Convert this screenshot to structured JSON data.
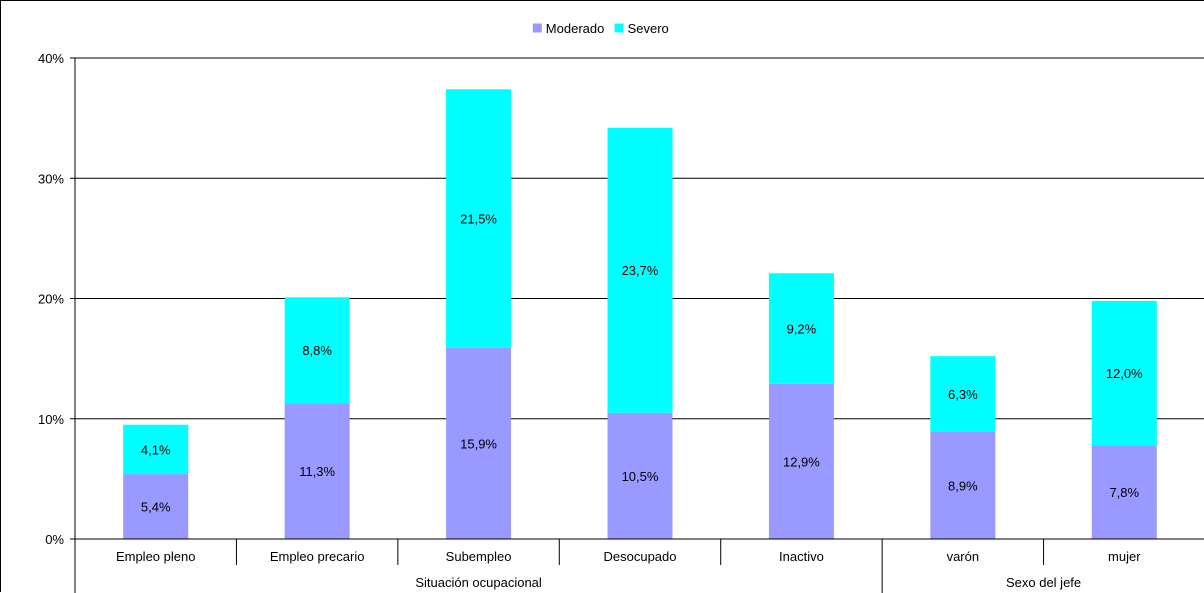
{
  "chart_data": {
    "type": "bar",
    "stacked": true,
    "categories": [
      "Empleo pleno",
      "Empleo precario",
      "Subempleo",
      "Desocupado",
      "Inactivo",
      "varón",
      "mujer"
    ],
    "groups": [
      {
        "label": "Situación ocupacional",
        "categories": [
          "Empleo pleno",
          "Empleo precario",
          "Subempleo",
          "Desocupado",
          "Inactivo"
        ]
      },
      {
        "label": "Sexo del jefe",
        "categories": [
          "varón",
          "mujer"
        ]
      }
    ],
    "series": [
      {
        "name": "Moderado",
        "color": "#9999ff",
        "values": [
          5.4,
          11.3,
          15.9,
          10.5,
          12.9,
          8.9,
          7.8
        ],
        "labels": [
          "5,4%",
          "11,3%",
          "15,9%",
          "10,5%",
          "12,9%",
          "8,9%",
          "7,8%"
        ]
      },
      {
        "name": "Severo",
        "color": "#00ffff",
        "values": [
          4.1,
          8.8,
          21.5,
          23.7,
          9.2,
          6.3,
          12.0
        ],
        "labels": [
          "4,1%",
          "8,8%",
          "21,5%",
          "23,7%",
          "9,2%",
          "6,3%",
          "12,0%"
        ]
      }
    ],
    "yticks": [
      0,
      10,
      20,
      30,
      40
    ],
    "ytick_labels": [
      "0%",
      "10%",
      "20%",
      "30%",
      "40%"
    ],
    "ylim": [
      0,
      40
    ],
    "grid": true,
    "legend_position": "top-center",
    "title": "",
    "xlabel": "",
    "ylabel": ""
  }
}
